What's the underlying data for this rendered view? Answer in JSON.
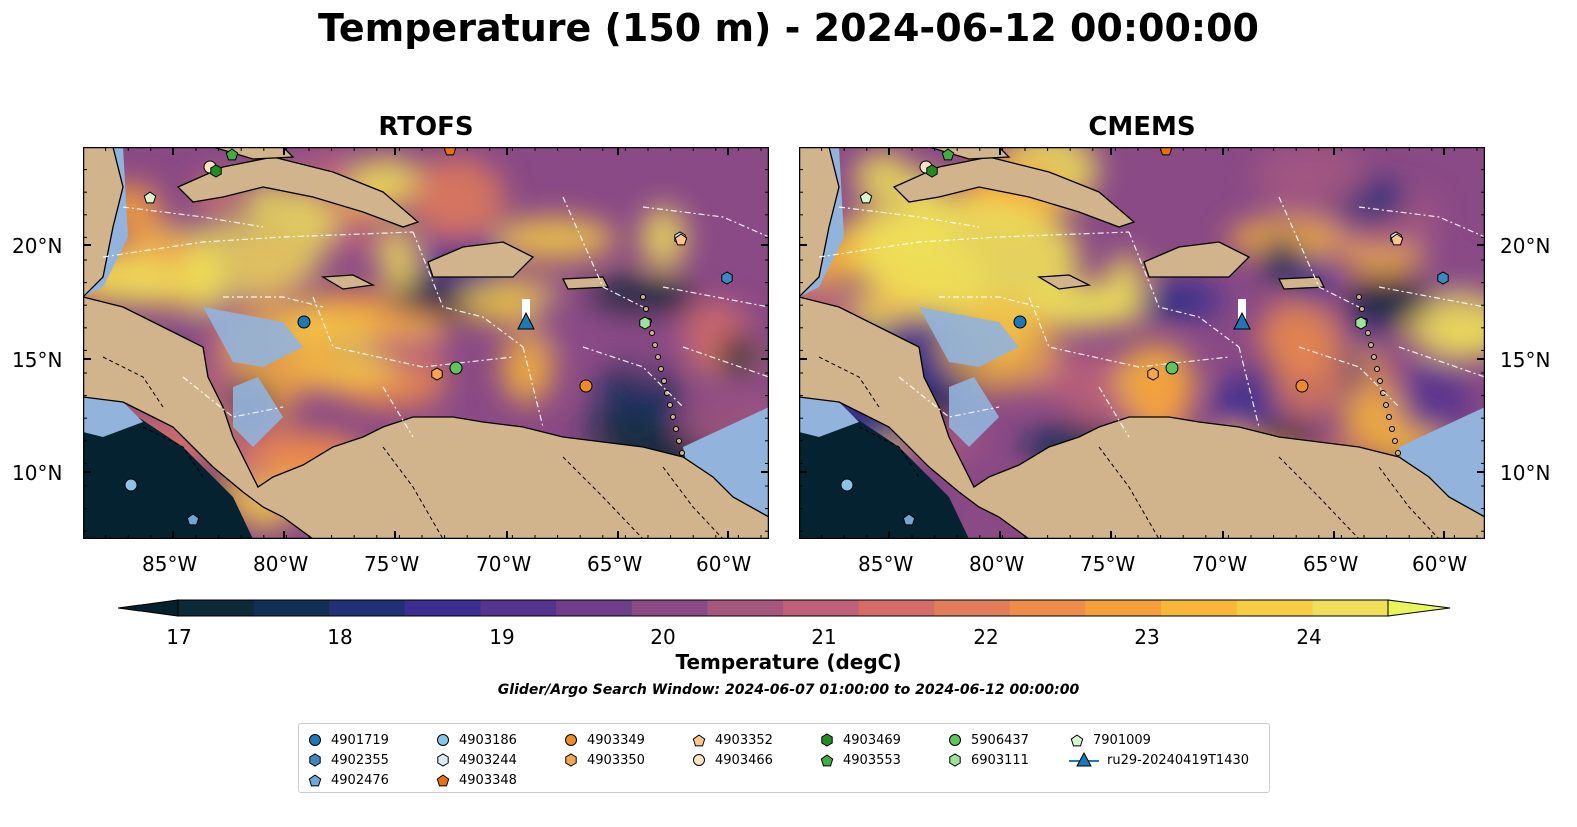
{
  "title": "Temperature (150 m) - 2024-06-12 00:00:00",
  "panels": [
    {
      "title": "RTOFS",
      "mode": "rtofs"
    },
    {
      "title": "CMEMS",
      "mode": "cmems"
    }
  ],
  "lon_ticks": [
    "85°W",
    "80°W",
    "75°W",
    "70°W",
    "65°W",
    "60°W"
  ],
  "lat_ticks": [
    "20°N",
    "15°N",
    "10°N"
  ],
  "colorbar": {
    "ticks": [
      "17",
      "18",
      "19",
      "20",
      "21",
      "22",
      "23",
      "24"
    ],
    "label": "Temperature (degC)",
    "colors": [
      "#0c2a38",
      "#122e57",
      "#22307a",
      "#3a2f90",
      "#56338f",
      "#6f3e8a",
      "#8a4a86",
      "#a55780",
      "#be6178",
      "#d46d6a",
      "#e37c5a",
      "#ef8c4a",
      "#f6a03c",
      "#f8b63a",
      "#f5cc44",
      "#eee05a"
    ],
    "min_color": "#05202c",
    "max_color": "#e9f558"
  },
  "search_window": "Glider/Argo Search Window: 2024-06-07 01:00:00 to 2024-06-12 00:00:00",
  "legend": [
    [
      {
        "id": "4901719",
        "marker": "circle",
        "color": "#1f77b4"
      },
      {
        "id": "4902355",
        "marker": "hexagon",
        "color": "#3d88c0"
      },
      {
        "id": "4902476",
        "marker": "pentagon",
        "color": "#6fa8d8"
      }
    ],
    [
      {
        "id": "4903186",
        "marker": "circle",
        "color": "#8cc4e8"
      },
      {
        "id": "4903244",
        "marker": "hexagon",
        "color": "#d8ebf7"
      },
      {
        "id": "4903348",
        "marker": "pentagon",
        "color": "#e8700f"
      }
    ],
    [
      {
        "id": "4903349",
        "marker": "circle",
        "color": "#f08a28"
      },
      {
        "id": "4903350",
        "marker": "hexagon",
        "color": "#f7a54c"
      }
    ],
    [
      {
        "id": "4903352",
        "marker": "pentagon",
        "color": "#fbc493"
      },
      {
        "id": "4903466",
        "marker": "circle",
        "color": "#fde2c6"
      }
    ],
    [
      {
        "id": "4903469",
        "marker": "hexagon",
        "color": "#238b22"
      },
      {
        "id": "4903553",
        "marker": "pentagon",
        "color": "#3fae3f"
      }
    ],
    [
      {
        "id": "5906437",
        "marker": "circle",
        "color": "#5cc55c"
      },
      {
        "id": "6903111",
        "marker": "hexagon",
        "color": "#9be39b"
      }
    ],
    [
      {
        "id": "7901009",
        "marker": "pentagon",
        "color": "#d8f5d0"
      },
      {
        "id": "ru29-20240419T1430",
        "marker": "triangle",
        "color": "#1f77b4"
      }
    ]
  ],
  "map_features": {
    "land_color": "#d2b48c",
    "shelf_color": "#92b4dc",
    "deep_color": "#052230"
  }
}
